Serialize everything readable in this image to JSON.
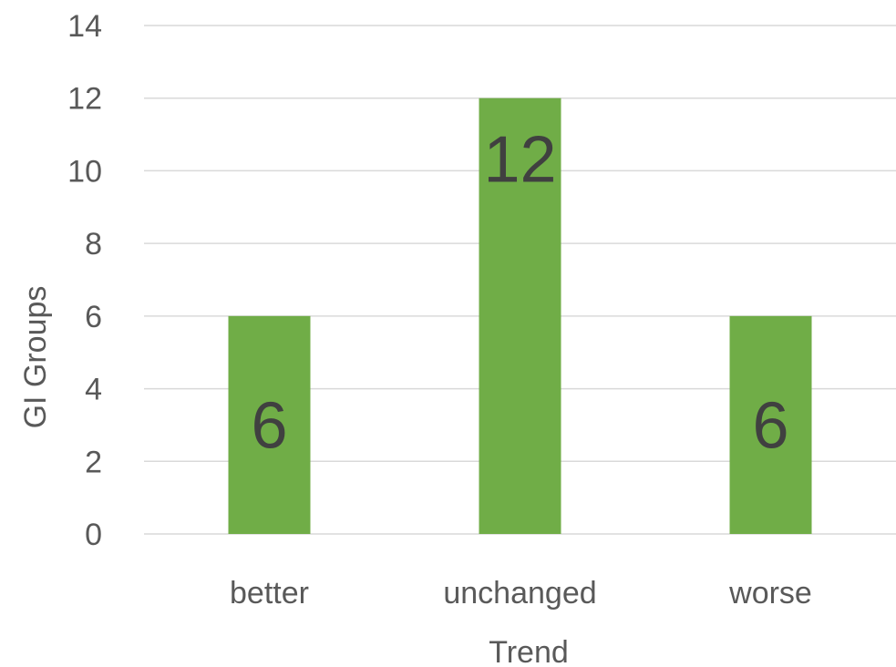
{
  "chart_data": {
    "type": "bar",
    "categories": [
      "better",
      "unchanged",
      "worse"
    ],
    "values": [
      6,
      12,
      6
    ],
    "data_labels": [
      "6",
      "12",
      "6"
    ],
    "xlabel": "Trend",
    "ylabel": "GI Groups",
    "ylim": [
      0,
      14
    ],
    "y_ticks": [
      "0",
      "2",
      "4",
      "6",
      "8",
      "10",
      "12",
      "14"
    ],
    "grid": true,
    "legend": "none",
    "bar_color": "#70ad47"
  }
}
